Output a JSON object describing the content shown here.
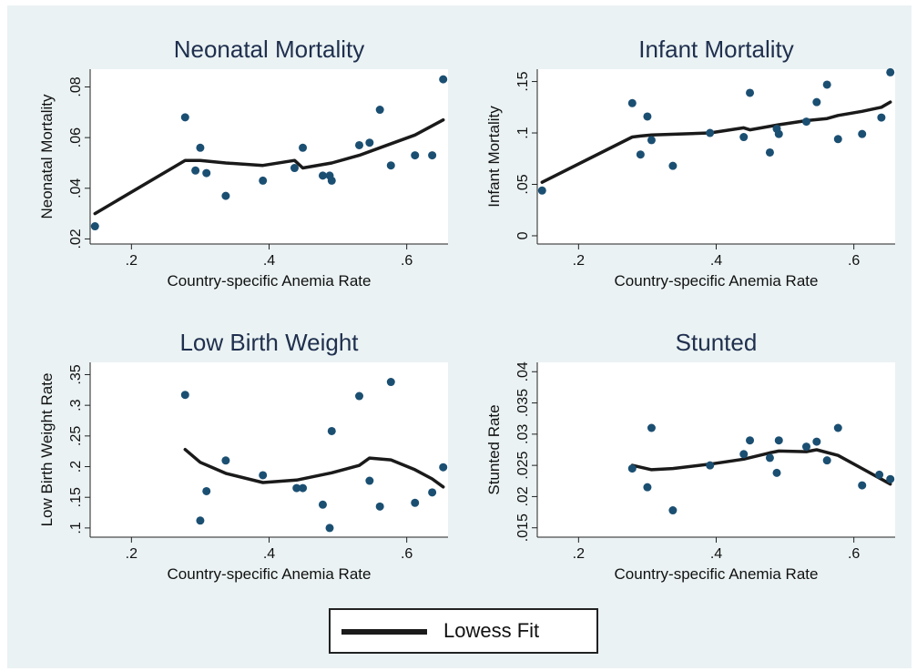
{
  "chart_data": [
    {
      "type": "scatter",
      "title": "Neonatal Mortality",
      "xlabel": "Country-specific Anemia Rate",
      "ylabel": "Neonatal Mortality",
      "xlim": [
        0.14,
        0.66
      ],
      "ylim": [
        0.018,
        0.087
      ],
      "xticks": [
        {
          "v": 0.2,
          "label": ".2"
        },
        {
          "v": 0.4,
          "label": ".4"
        },
        {
          "v": 0.6,
          "label": ".6"
        }
      ],
      "yticks": [
        {
          "v": 0.02,
          "label": ".02"
        },
        {
          "v": 0.04,
          "label": ".04"
        },
        {
          "v": 0.06,
          "label": ".06"
        },
        {
          "v": 0.08,
          "label": ".08"
        }
      ],
      "points": [
        [
          0.147,
          0.025
        ],
        [
          0.278,
          0.068
        ],
        [
          0.293,
          0.047
        ],
        [
          0.3,
          0.056
        ],
        [
          0.309,
          0.046
        ],
        [
          0.337,
          0.037
        ],
        [
          0.391,
          0.043
        ],
        [
          0.437,
          0.048
        ],
        [
          0.449,
          0.056
        ],
        [
          0.478,
          0.045
        ],
        [
          0.488,
          0.045
        ],
        [
          0.491,
          0.043
        ],
        [
          0.531,
          0.057
        ],
        [
          0.546,
          0.058
        ],
        [
          0.561,
          0.071
        ],
        [
          0.577,
          0.049
        ],
        [
          0.612,
          0.053
        ],
        [
          0.637,
          0.053
        ],
        [
          0.653,
          0.083
        ]
      ],
      "lowess": [
        [
          0.147,
          0.03
        ],
        [
          0.278,
          0.051
        ],
        [
          0.3,
          0.051
        ],
        [
          0.337,
          0.05
        ],
        [
          0.391,
          0.049
        ],
        [
          0.437,
          0.051
        ],
        [
          0.449,
          0.048
        ],
        [
          0.491,
          0.05
        ],
        [
          0.531,
          0.053
        ],
        [
          0.561,
          0.056
        ],
        [
          0.612,
          0.061
        ],
        [
          0.653,
          0.067
        ]
      ]
    },
    {
      "type": "scatter",
      "title": "Infant Mortality",
      "xlabel": "Country-specific Anemia Rate",
      "ylabel": "Infant Mortality",
      "xlim": [
        0.14,
        0.66
      ],
      "ylim": [
        -0.008,
        0.162
      ],
      "xticks": [
        {
          "v": 0.2,
          "label": ".2"
        },
        {
          "v": 0.4,
          "label": ".4"
        },
        {
          "v": 0.6,
          "label": ".6"
        }
      ],
      "yticks": [
        {
          "v": 0.0,
          "label": "0"
        },
        {
          "v": 0.05,
          "label": ".05"
        },
        {
          "v": 0.1,
          "label": ".1"
        },
        {
          "v": 0.15,
          "label": ".15"
        }
      ],
      "points": [
        [
          0.147,
          0.044
        ],
        [
          0.278,
          0.129
        ],
        [
          0.29,
          0.079
        ],
        [
          0.3,
          0.116
        ],
        [
          0.306,
          0.093
        ],
        [
          0.337,
          0.068
        ],
        [
          0.391,
          0.1
        ],
        [
          0.44,
          0.096
        ],
        [
          0.449,
          0.139
        ],
        [
          0.478,
          0.081
        ],
        [
          0.488,
          0.104
        ],
        [
          0.491,
          0.099
        ],
        [
          0.531,
          0.111
        ],
        [
          0.546,
          0.13
        ],
        [
          0.561,
          0.147
        ],
        [
          0.577,
          0.094
        ],
        [
          0.612,
          0.099
        ],
        [
          0.64,
          0.115
        ],
        [
          0.653,
          0.159
        ]
      ],
      "lowess": [
        [
          0.147,
          0.052
        ],
        [
          0.278,
          0.096
        ],
        [
          0.29,
          0.097
        ],
        [
          0.306,
          0.098
        ],
        [
          0.391,
          0.1
        ],
        [
          0.44,
          0.105
        ],
        [
          0.449,
          0.103
        ],
        [
          0.491,
          0.108
        ],
        [
          0.531,
          0.112
        ],
        [
          0.561,
          0.114
        ],
        [
          0.577,
          0.117
        ],
        [
          0.612,
          0.121
        ],
        [
          0.64,
          0.125
        ],
        [
          0.653,
          0.13
        ]
      ]
    },
    {
      "type": "scatter",
      "title": "Low Birth Weight",
      "xlabel": "Country-specific Anemia Rate",
      "ylabel": "Low Birth Weight Rate",
      "xlim": [
        0.14,
        0.66
      ],
      "ylim": [
        0.085,
        0.37
      ],
      "xticks": [
        {
          "v": 0.2,
          "label": ".2"
        },
        {
          "v": 0.4,
          "label": ".4"
        },
        {
          "v": 0.6,
          "label": ".6"
        }
      ],
      "yticks": [
        {
          "v": 0.1,
          "label": ".1"
        },
        {
          "v": 0.15,
          "label": ".15"
        },
        {
          "v": 0.2,
          "label": ".2"
        },
        {
          "v": 0.25,
          "label": ".25"
        },
        {
          "v": 0.3,
          "label": ".3"
        },
        {
          "v": 0.35,
          "label": ".35"
        }
      ],
      "points": [
        [
          0.278,
          0.317
        ],
        [
          0.3,
          0.112
        ],
        [
          0.309,
          0.16
        ],
        [
          0.337,
          0.21
        ],
        [
          0.391,
          0.186
        ],
        [
          0.44,
          0.165
        ],
        [
          0.449,
          0.165
        ],
        [
          0.478,
          0.138
        ],
        [
          0.488,
          0.1
        ],
        [
          0.491,
          0.258
        ],
        [
          0.531,
          0.315
        ],
        [
          0.546,
          0.177
        ],
        [
          0.561,
          0.135
        ],
        [
          0.577,
          0.338
        ],
        [
          0.612,
          0.141
        ],
        [
          0.637,
          0.158
        ],
        [
          0.653,
          0.199
        ]
      ],
      "lowess": [
        [
          0.278,
          0.228
        ],
        [
          0.3,
          0.207
        ],
        [
          0.337,
          0.189
        ],
        [
          0.391,
          0.174
        ],
        [
          0.44,
          0.178
        ],
        [
          0.491,
          0.19
        ],
        [
          0.531,
          0.202
        ],
        [
          0.546,
          0.214
        ],
        [
          0.577,
          0.211
        ],
        [
          0.612,
          0.195
        ],
        [
          0.637,
          0.18
        ],
        [
          0.653,
          0.167
        ]
      ]
    },
    {
      "type": "scatter",
      "title": "Stunted",
      "xlabel": "Country-specific Anemia Rate",
      "ylabel": "Stunted Rate",
      "xlim": [
        0.14,
        0.66
      ],
      "ylim": [
        0.0135,
        0.0415
      ],
      "xticks": [
        {
          "v": 0.2,
          "label": ".2"
        },
        {
          "v": 0.4,
          "label": ".4"
        },
        {
          "v": 0.6,
          "label": ".6"
        }
      ],
      "yticks": [
        {
          "v": 0.015,
          "label": ".015"
        },
        {
          "v": 0.02,
          "label": ".02"
        },
        {
          "v": 0.025,
          "label": ".025"
        },
        {
          "v": 0.03,
          "label": ".03"
        },
        {
          "v": 0.035,
          "label": ".035"
        },
        {
          "v": 0.04,
          "label": ".04"
        }
      ],
      "points": [
        [
          0.278,
          0.0245
        ],
        [
          0.3,
          0.0215
        ],
        [
          0.306,
          0.031
        ],
        [
          0.337,
          0.0178
        ],
        [
          0.391,
          0.025
        ],
        [
          0.44,
          0.0268
        ],
        [
          0.449,
          0.029
        ],
        [
          0.478,
          0.0262
        ],
        [
          0.488,
          0.0238
        ],
        [
          0.491,
          0.029
        ],
        [
          0.531,
          0.028
        ],
        [
          0.546,
          0.0288
        ],
        [
          0.561,
          0.0258
        ],
        [
          0.577,
          0.031
        ],
        [
          0.612,
          0.0218
        ],
        [
          0.637,
          0.0235
        ],
        [
          0.653,
          0.0228
        ]
      ],
      "lowess": [
        [
          0.278,
          0.025
        ],
        [
          0.306,
          0.0243
        ],
        [
          0.337,
          0.0245
        ],
        [
          0.391,
          0.0252
        ],
        [
          0.44,
          0.026
        ],
        [
          0.478,
          0.027
        ],
        [
          0.491,
          0.0273
        ],
        [
          0.531,
          0.0272
        ],
        [
          0.546,
          0.0275
        ],
        [
          0.577,
          0.0266
        ],
        [
          0.612,
          0.0245
        ],
        [
          0.653,
          0.022
        ]
      ]
    }
  ],
  "legend": {
    "label": "Lowess Fit",
    "line_color": "#1a1a1a"
  },
  "colors": {
    "panel_bg": "#eaf2f3",
    "plot_bg": "#ffffff",
    "marker": "#1b4f72",
    "title": "#1f2f4e",
    "line": "#1a1a1a"
  }
}
